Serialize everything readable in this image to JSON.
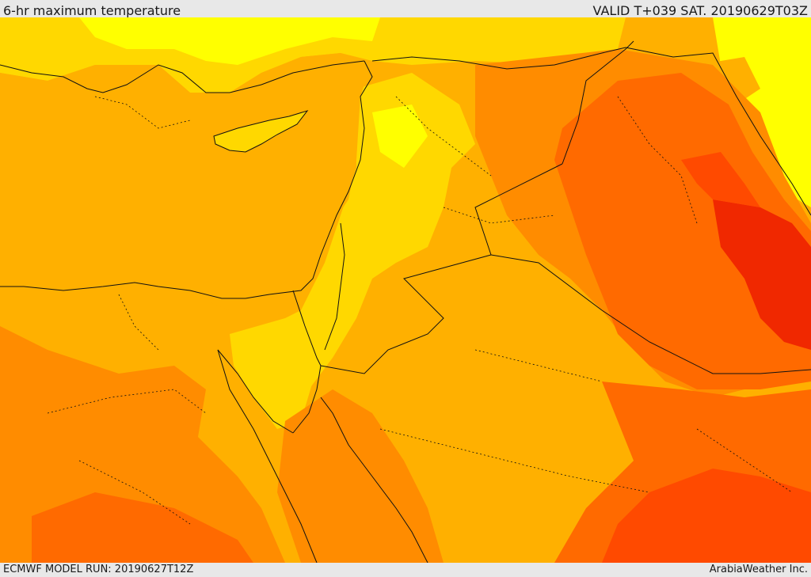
{
  "header": {
    "title": "6-hr maximum temperature",
    "valid": "VALID T+039 SAT. 20190629T03Z"
  },
  "footer": {
    "model_run": "ECMWF MODEL RUN: 20190627T12Z",
    "credit": "ArabiaWeather Inc."
  },
  "colors": {
    "light_yellow": "#ffff00",
    "yellow": "#ffd800",
    "light_orange": "#ffb000",
    "orange": "#ff8c00",
    "dark_orange": "#ff6a00",
    "red_orange": "#ff4a00",
    "red": "#f02800",
    "sea": "#ffb000",
    "border": "#111111"
  }
}
